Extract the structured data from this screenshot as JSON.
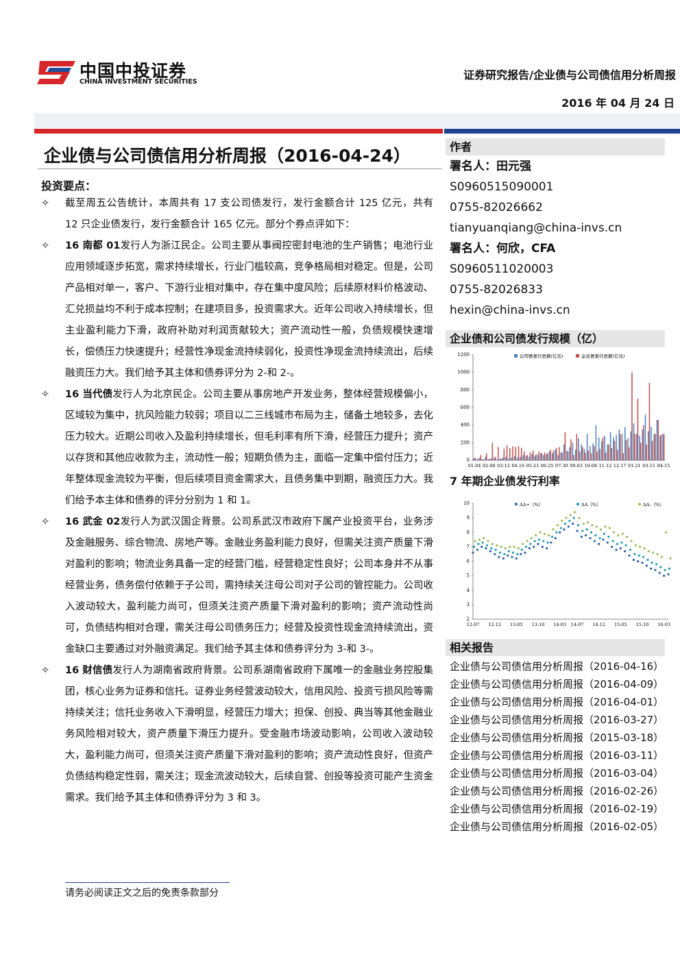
{
  "header": {
    "logo_cn": "中国中投证券",
    "logo_en": "CHINA INVESTMENT SECURITIES",
    "category": "证券研究报告/企业债与公司债信用分析周报",
    "date": "2016 年 04 月 24 日"
  },
  "title": "企业债与公司债信用分析周报（2016-04-24）",
  "highlights": {
    "heading": "投资要点：",
    "items": [
      {
        "lead": "",
        "text": "截至周五公告统计，本周共有 17 支公司债发行，发行金额合计 125 亿元，共有 12 只企业债发行，发行金额合计 165 亿元。部分个券点评如下："
      },
      {
        "lead": "16 南都 01",
        "text": "发行人为浙江民企。公司主要从事阀控密封电池的生产销售；电池行业应用领域逐步拓宽，需求持续增长，行业门槛较高，竞争格局相对稳定。但是，公司产品相对单一，客户、下游行业相对集中，存在集中度风险；后续原材料价格波动、汇兑损益均不利于成本控制；在建项目多，投资需求大。近年公司收入持续增长，但主业盈利能力下滑，政府补助对利润贡献较大；资产流动性一般，负债规模快速增长，偿债压力快速提升；经营性净现金流持续弱化，投资性净现金流持续流出，后续融资压力大。我们给予其主体和债券评分为 2-和 2-。"
      },
      {
        "lead": "16 当代债",
        "text": "发行人为北京民企。公司主要从事房地产开发业务，整体经营规模偏小，区域较为集中，抗风险能力较弱；项目以二三线城市布局为主，储备土地较多，去化压力较大。近期公司收入及盈利持续增长，但毛利率有所下滑，经营压力提升；资产以存货和其他应收款为主，流动性一般；短期负债为主，面临一定集中偿付压力；近年整体现金流较为平衡，但后续项目资金需求大，且债务集中到期，融资压力大。我们给予本主体和债券的评分分别为 1 和 1。"
      },
      {
        "lead": "16 武金 02",
        "text": "发行人为武汉国企背景。公司系武汉市政府下属产业投资平台，业务涉及金融服务、综合物流、房地产等。金融业务盈利能力良好，但需关注资产质量下滑对盈利的影响；物流业务具备一定的经营门槛，经营稳定性良好；公司本身并不从事经营业务，债务偿付依赖于子公司，需持续关注母公司对子公司的管控能力。公司收入波动较大，盈利能力尚可，但须关注资产质量下滑对盈利的影响；资产流动性尚可，负债结构相对合理，需关注母公司债务压力；经营及投资性现金流持续流出，资金缺口主要通过对外融资满足。我们给予其主体和债券评分为 3-和 3-。"
      },
      {
        "lead": "16 财信债",
        "text": "发行人为湖南省政府背景。公司系湖南省政府下属唯一的金融业务控股集团，核心业务为证券和信托。证券业务经营波动较大，信用风险、投资亏损风险等需持续关注；信托业务收入下滑明显，经营压力增大；担保、创投、典当等其他金融业务风险相对较大，资产质量下滑压力提升。受金融市场波动影响，公司收入波动较大，盈利能力尚可，但须关注资产质量下滑对盈利的影响；资产流动性良好，但资产负债结构稳定性弱，需关注；现金流波动较大，后续自营、创投等投资可能产生资金需求。我们给予其主体和债券评分为 3 和 3。"
      }
    ]
  },
  "author": {
    "heading": "作者",
    "people": [
      {
        "name": "署名人：田元强",
        "id": "S0960515090001",
        "phone": "0755-82026662",
        "email": "tianyuanqiang@china-invs.cn"
      },
      {
        "name": "署名人：何欣，CFA",
        "id": "S0960511020003",
        "phone": "0755-82026833",
        "email": "hexin@china-invs.cn"
      }
    ]
  },
  "chart_data": [
    {
      "type": "bar",
      "title": "企业债和公司债发行规模（亿）",
      "categories": [
        "01-04",
        null,
        null,
        null,
        null,
        "02-08",
        null,
        null,
        null,
        null,
        "03-12",
        null,
        null,
        null,
        null,
        "04-16",
        null,
        null,
        null,
        null,
        "05-21",
        null,
        null,
        null,
        null,
        "06-25",
        null,
        null,
        null,
        null,
        "07-30",
        null,
        null,
        null,
        null,
        "09-03",
        null,
        null,
        null,
        null,
        "10-08",
        null,
        null,
        null,
        null,
        "11-12",
        null,
        null,
        null,
        null,
        "12-17",
        null,
        null,
        null,
        null,
        "01-21",
        null,
        null,
        null,
        null,
        "03-11",
        null,
        null,
        null,
        null,
        "04-15"
      ],
      "series": [
        {
          "name": "公司债发行总额(亿元)",
          "color": "#4f81bd",
          "values": [
            20,
            10,
            30,
            15,
            40,
            10,
            20,
            30,
            10,
            20,
            30,
            40,
            20,
            30,
            50,
            30,
            40,
            60,
            50,
            40,
            70,
            50,
            60,
            80,
            60,
            70,
            100,
            80,
            120,
            60,
            90,
            180,
            110,
            150,
            200,
            120,
            250,
            180,
            130,
            300,
            160,
            190,
            400,
            260,
            220,
            280,
            180,
            320,
            260,
            290,
            350,
            300,
            380,
            250,
            330,
            420,
            300,
            280,
            350,
            520,
            330,
            380,
            300,
            460,
            280,
            300
          ]
        },
        {
          "name": "企业债发行总额(亿元)",
          "color": "#c0504d",
          "values": [
            30,
            20,
            60,
            10,
            80,
            20,
            200,
            40,
            150,
            20,
            130,
            170,
            140,
            160,
            150,
            160,
            140,
            100,
            60,
            90,
            110,
            70,
            100,
            80,
            90,
            80,
            120,
            110,
            140,
            150,
            90,
            320,
            100,
            240,
            60,
            300,
            100,
            150,
            90,
            110,
            80,
            160,
            100,
            130,
            260,
            90,
            180,
            140,
            220,
            120,
            300,
            80,
            230,
            150,
            1000,
            300,
            700,
            200,
            400,
            180,
            880,
            220,
            300,
            460,
            290,
            300
          ]
        }
      ],
      "ylim": [
        0,
        1200
      ],
      "yticks": [
        0,
        200,
        400,
        600,
        800,
        1000,
        1200
      ]
    },
    {
      "type": "scatter",
      "title": "7 年期企业债发行利率",
      "categories": [
        "12-07",
        null,
        null,
        null,
        null,
        "12-12",
        null,
        null,
        null,
        null,
        "13-05",
        null,
        null,
        null,
        null,
        "13-10",
        null,
        null,
        null,
        null,
        "14-03",
        null,
        null,
        null,
        "14-07",
        null,
        null,
        null,
        null,
        "14-12",
        null,
        null,
        null,
        null,
        "15-05",
        null,
        null,
        null,
        null,
        "15-10",
        null,
        null,
        null,
        null,
        "16-03",
        null
      ],
      "series": [
        {
          "name": "AA+（%）",
          "color": "#2e5fa8",
          "values": [
            6.6,
            6.8,
            7.0,
            6.9,
            6.7,
            6.5,
            6.3,
            6.2,
            6.4,
            6.3,
            6.2,
            6.5,
            6.6,
            6.9,
            7.0,
            7.2,
            7.0,
            6.9,
            7.3,
            7.6,
            8.0,
            8.2,
            8.4,
            8.6,
            8.1,
            7.7,
            7.8,
            7.6,
            7.4,
            7.2,
            7.5,
            7.3,
            7.0,
            6.8,
            6.9,
            6.7,
            6.4,
            6.1,
            6.0,
            5.9,
            5.7,
            5.5,
            5.4,
            5.2,
            5.0,
            5.1
          ]
        },
        {
          "name": "AA（%）",
          "color": "#1f9bb5",
          "values": [
            7.0,
            7.2,
            7.3,
            7.1,
            6.9,
            6.8,
            6.6,
            6.5,
            6.7,
            6.6,
            6.5,
            6.8,
            7.0,
            7.2,
            7.4,
            7.5,
            7.4,
            7.3,
            7.7,
            8.0,
            8.3,
            8.6,
            8.8,
            9.0,
            8.5,
            8.1,
            8.2,
            8.0,
            7.8,
            7.6,
            7.9,
            7.7,
            7.4,
            7.2,
            7.3,
            7.1,
            6.8,
            6.5,
            6.4,
            6.3,
            6.1,
            5.9,
            5.8,
            5.6,
            5.4,
            5.5
          ]
        },
        {
          "name": "AA-（%）",
          "color": "#9bbb59",
          "values": [
            7.4,
            7.5,
            7.6,
            7.4,
            7.2,
            7.1,
            7.0,
            6.9,
            7.0,
            7.0,
            6.9,
            7.2,
            7.4,
            7.6,
            7.8,
            8.0,
            7.9,
            7.8,
            8.2,
            8.5,
            8.8,
            9.0,
            9.2,
            9.4,
            9.0,
            8.6,
            8.7,
            8.5,
            8.4,
            8.2,
            8.4,
            8.3,
            8.0,
            7.8,
            7.9,
            7.7,
            7.4,
            7.1,
            7.0,
            6.9,
            6.7,
            6.6,
            6.5,
            6.3,
            8.0,
            6.2
          ]
        }
      ],
      "ylim": [
        2,
        10
      ],
      "yticks": [
        2,
        3,
        4,
        5,
        6,
        7,
        8,
        9,
        10
      ]
    }
  ],
  "related": {
    "heading": "相关报告",
    "items": [
      "企业债与公司债信用分析周报（2016-04-16）",
      "企业债与公司债信用分析周报（2016-04-09）",
      "企业债与公司债信用分析周报（2016-04-01）",
      "企业债与公司债信用分析周报（2016-03-27）",
      "企业债与公司债信用分析周报（2015-03-18）",
      "企业债与公司债信用分析周报（2016-03-11）",
      "企业债与公司债信用分析周报（2016-03-04）",
      "企业债与公司债信用分析周报（2016-02-26）",
      "企业债与公司债信用分析周报（2016-02-19）",
      "企业债与公司债信用分析周报（2016-02-05）"
    ]
  },
  "footer": "请务必阅读正文之后的免责条款部分"
}
